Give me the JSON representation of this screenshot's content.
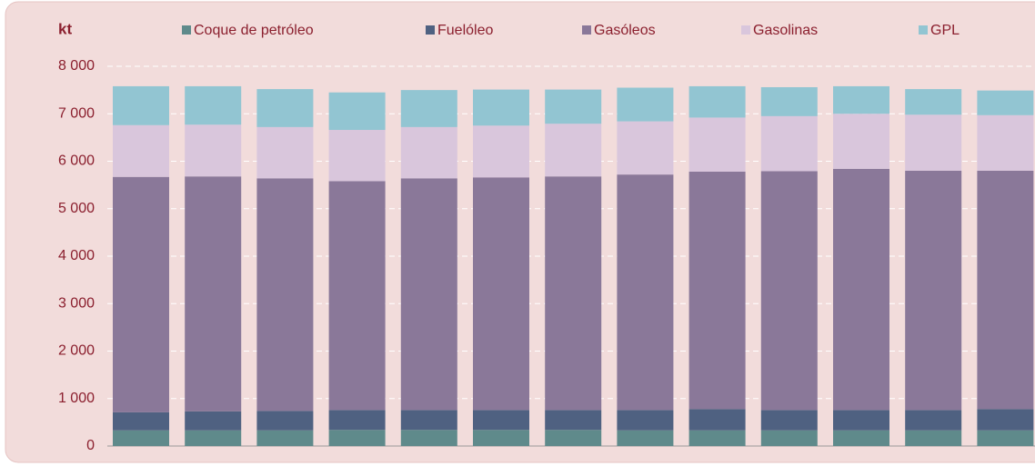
{
  "chart_data": {
    "type": "stacked_bar",
    "y_label": "kt",
    "categories": [
      null,
      null,
      null,
      null,
      null,
      null,
      null,
      null,
      null,
      null,
      null,
      null,
      null
    ],
    "series": [
      {
        "name": "Coque de petróleo",
        "color": "#5f8a8b",
        "values": [
          330,
          330,
          330,
          340,
          340,
          340,
          340,
          330,
          330,
          330,
          330,
          330,
          330
        ]
      },
      {
        "name": "Fuelóleo",
        "color": "#4f6181",
        "values": [
          380,
          400,
          410,
          420,
          420,
          420,
          420,
          430,
          450,
          430,
          430,
          430,
          450
        ]
      },
      {
        "name": "Gasóleos",
        "color": "#8a7899",
        "values": [
          4960,
          4950,
          4900,
          4820,
          4880,
          4900,
          4920,
          4960,
          5000,
          5030,
          5080,
          5040,
          5020
        ]
      },
      {
        "name": "Gasolinas",
        "color": "#d9c6dc",
        "values": [
          1090,
          1090,
          1080,
          1080,
          1080,
          1090,
          1110,
          1120,
          1140,
          1160,
          1160,
          1180,
          1170
        ]
      },
      {
        "name": "GPL",
        "color": "#92c5d2",
        "values": [
          820,
          810,
          800,
          790,
          780,
          760,
          720,
          710,
          660,
          610,
          580,
          540,
          520
        ]
      }
    ],
    "ylim": [
      0,
      8000
    ],
    "yticks": [
      0,
      {
        "value": 1000,
        "label": "1 000"
      },
      {
        "value": 2000,
        "label": "2 000"
      },
      {
        "value": 3000,
        "label": "3 000"
      },
      {
        "value": 4000,
        "label": "4 000"
      },
      {
        "value": 5000,
        "label": "5 000"
      },
      {
        "value": 6000,
        "label": "6 000"
      },
      {
        "value": 7000,
        "label": "7 000"
      },
      {
        "value": 8000,
        "label": "8 000"
      }
    ],
    "grid": true
  }
}
